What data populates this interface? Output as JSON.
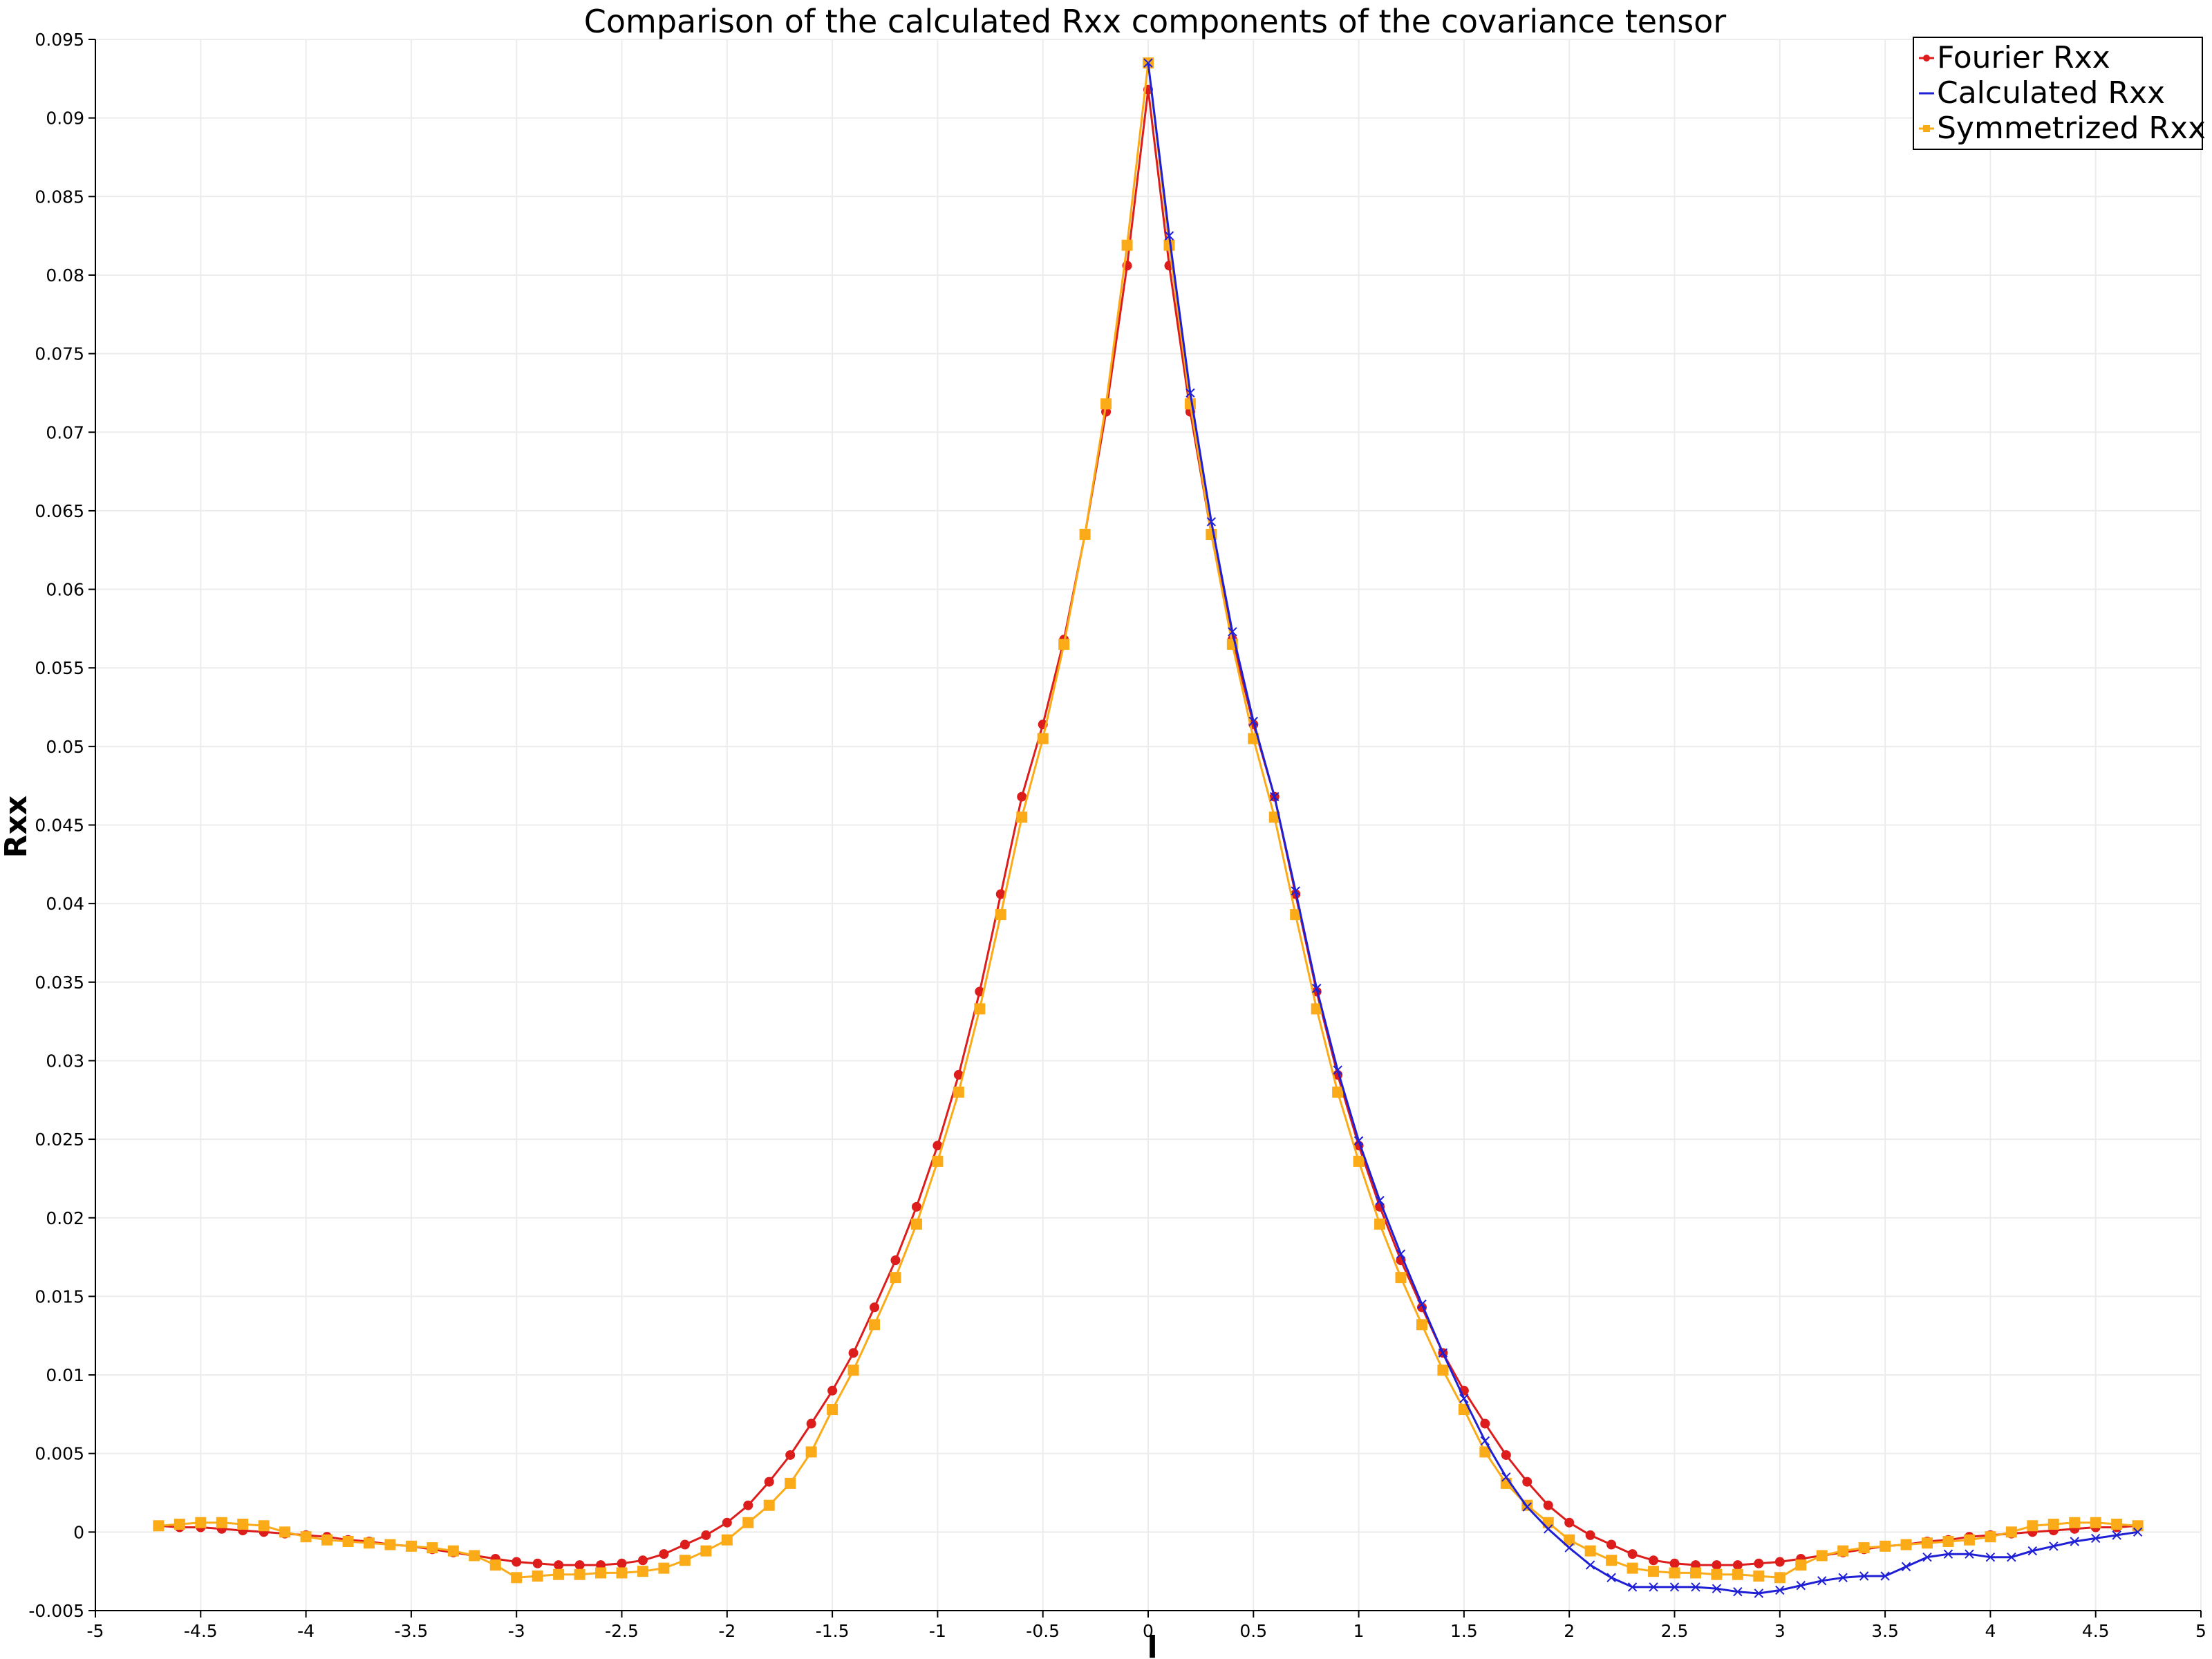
{
  "chart_data": {
    "type": "line",
    "title": "Comparison of the calculated Rxx components of the covariance tensor",
    "xlabel": "l",
    "ylabel": "Rxx",
    "xlim": [
      -5,
      5
    ],
    "ylim": [
      -0.005,
      0.095
    ],
    "xticks": [
      "-5",
      "-4.5",
      "-4",
      "-3.5",
      "-3",
      "-2.5",
      "-2",
      "-1.5",
      "-1",
      "-0.5",
      "0",
      "0.5",
      "1",
      "1.5",
      "2",
      "2.5",
      "3",
      "3.5",
      "4",
      "4.5",
      "5"
    ],
    "yticks": [
      "-0.005",
      "0",
      "0.005",
      "0.01",
      "0.015",
      "0.02",
      "0.025",
      "0.03",
      "0.035",
      "0.04",
      "0.045",
      "0.05",
      "0.055",
      "0.06",
      "0.065",
      "0.07",
      "0.075",
      "0.08",
      "0.085",
      "0.09",
      "0.095"
    ],
    "grid": true,
    "legend_position": "top-right",
    "series": [
      {
        "name": "Fourier Rxx",
        "color": "#dd1c1c",
        "marker": "circle",
        "x": [
          -4.7,
          -4.6,
          -4.5,
          -4.4,
          -4.3,
          -4.2,
          -4.1,
          -4.0,
          -3.9,
          -3.8,
          -3.7,
          -3.6,
          -3.5,
          -3.4,
          -3.3,
          -3.2,
          -3.1,
          -3.0,
          -2.9,
          -2.8,
          -2.7,
          -2.6,
          -2.5,
          -2.4,
          -2.3,
          -2.2,
          -2.1,
          -2.0,
          -1.9,
          -1.8,
          -1.7,
          -1.6,
          -1.5,
          -1.4,
          -1.3,
          -1.2,
          -1.1,
          -1.0,
          -0.9,
          -0.8,
          -0.7,
          -0.6,
          -0.5,
          -0.4,
          -0.3,
          -0.2,
          -0.1,
          0.0,
          0.1,
          0.2,
          0.3,
          0.4,
          0.5,
          0.6,
          0.7,
          0.8,
          0.9,
          1.0,
          1.1,
          1.2,
          1.3,
          1.4,
          1.5,
          1.6,
          1.7,
          1.8,
          1.9,
          2.0,
          2.1,
          2.2,
          2.3,
          2.4,
          2.5,
          2.6,
          2.7,
          2.8,
          2.9,
          3.0,
          3.1,
          3.2,
          3.3,
          3.4,
          3.5,
          3.6,
          3.7,
          3.8,
          3.9,
          4.0,
          4.1,
          4.2,
          4.3,
          4.4,
          4.5,
          4.6,
          4.7
        ],
        "values": [
          0.0004,
          0.0003,
          0.0003,
          0.0002,
          0.0001,
          0.0,
          -0.0001,
          -0.0002,
          -0.0003,
          -0.0005,
          -0.0006,
          -0.0008,
          -0.0009,
          -0.0011,
          -0.0013,
          -0.0015,
          -0.0017,
          -0.0019,
          -0.002,
          -0.0021,
          -0.0021,
          -0.0021,
          -0.002,
          -0.0018,
          -0.0014,
          -0.0008,
          -0.0002,
          0.0006,
          0.0017,
          0.0032,
          0.0049,
          0.0069,
          0.009,
          0.0114,
          0.0143,
          0.0173,
          0.0207,
          0.0246,
          0.0291,
          0.0344,
          0.0406,
          0.0468,
          0.0514,
          0.0568,
          0.0635,
          0.0713,
          0.0806,
          0.0918,
          0.0806,
          0.0713,
          0.0635,
          0.0568,
          0.0514,
          0.0468,
          0.0406,
          0.0344,
          0.0291,
          0.0246,
          0.0207,
          0.0173,
          0.0143,
          0.0114,
          0.009,
          0.0069,
          0.0049,
          0.0032,
          0.0017,
          0.0006,
          -0.0002,
          -0.0008,
          -0.0014,
          -0.0018,
          -0.002,
          -0.0021,
          -0.0021,
          -0.0021,
          -0.002,
          -0.0019,
          -0.0017,
          -0.0015,
          -0.0013,
          -0.0011,
          -0.0009,
          -0.0008,
          -0.0006,
          -0.0005,
          -0.0003,
          -0.0002,
          -0.0001,
          0.0,
          0.0001,
          0.0002,
          0.0003,
          0.0003,
          0.0004
        ]
      },
      {
        "name": "Calculated Rxx",
        "color": "#1f1fd6",
        "marker": "x",
        "x": [
          0.0,
          0.1,
          0.2,
          0.3,
          0.4,
          0.5,
          0.6,
          0.7,
          0.8,
          0.9,
          1.0,
          1.1,
          1.2,
          1.3,
          1.4,
          1.5,
          1.6,
          1.7,
          1.8,
          1.9,
          2.0,
          2.1,
          2.2,
          2.3,
          2.4,
          2.5,
          2.6,
          2.7,
          2.8,
          2.9,
          3.0,
          3.1,
          3.2,
          3.3,
          3.4,
          3.5,
          3.6,
          3.7,
          3.8,
          3.9,
          4.0,
          4.1,
          4.2,
          4.3,
          4.4,
          4.5,
          4.6,
          4.7
        ],
        "values": [
          0.0935,
          0.0825,
          0.0725,
          0.0643,
          0.0573,
          0.0516,
          0.0468,
          0.0408,
          0.0346,
          0.0294,
          0.0249,
          0.0211,
          0.0177,
          0.0145,
          0.0114,
          0.0085,
          0.0058,
          0.0035,
          0.0016,
          0.0002,
          -0.001,
          -0.0021,
          -0.0029,
          -0.0035,
          -0.0035,
          -0.0035,
          -0.0035,
          -0.0036,
          -0.0038,
          -0.0039,
          -0.0037,
          -0.0034,
          -0.0031,
          -0.0029,
          -0.0028,
          -0.0028,
          -0.0022,
          -0.0016,
          -0.0014,
          -0.0014,
          -0.0016,
          -0.0016,
          -0.0012,
          -0.0009,
          -0.0006,
          -0.0004,
          -0.0002,
          0.0
        ]
      },
      {
        "name": "Symmetrized Rxx",
        "color": "#fbab17",
        "marker": "square",
        "x": [
          -4.7,
          -4.6,
          -4.5,
          -4.4,
          -4.3,
          -4.2,
          -4.1,
          -4.0,
          -3.9,
          -3.8,
          -3.7,
          -3.6,
          -3.5,
          -3.4,
          -3.3,
          -3.2,
          -3.1,
          -3.0,
          -2.9,
          -2.8,
          -2.7,
          -2.6,
          -2.5,
          -2.4,
          -2.3,
          -2.2,
          -2.1,
          -2.0,
          -1.9,
          -1.8,
          -1.7,
          -1.6,
          -1.5,
          -1.4,
          -1.3,
          -1.2,
          -1.1,
          -1.0,
          -0.9,
          -0.8,
          -0.7,
          -0.6,
          -0.5,
          -0.4,
          -0.3,
          -0.2,
          -0.1,
          0.0,
          0.1,
          0.2,
          0.3,
          0.4,
          0.5,
          0.6,
          0.7,
          0.8,
          0.9,
          1.0,
          1.1,
          1.2,
          1.3,
          1.4,
          1.5,
          1.6,
          1.7,
          1.8,
          1.9,
          2.0,
          2.1,
          2.2,
          2.3,
          2.4,
          2.5,
          2.6,
          2.7,
          2.8,
          2.9,
          3.0,
          3.1,
          3.2,
          3.3,
          3.4,
          3.5,
          3.6,
          3.7,
          3.8,
          3.9,
          4.0,
          4.1,
          4.2,
          4.3,
          4.4,
          4.5,
          4.6,
          4.7
        ],
        "values": [
          0.0004,
          0.0005,
          0.0006,
          0.0006,
          0.0005,
          0.0004,
          0.0,
          -0.0003,
          -0.0005,
          -0.0006,
          -0.0007,
          -0.0008,
          -0.0009,
          -0.001,
          -0.0012,
          -0.0015,
          -0.0021,
          -0.0029,
          -0.0028,
          -0.0027,
          -0.0027,
          -0.0026,
          -0.0026,
          -0.0025,
          -0.0023,
          -0.0018,
          -0.0012,
          -0.0005,
          0.0006,
          0.0017,
          0.0031,
          0.0051,
          0.0078,
          0.0103,
          0.0132,
          0.0162,
          0.0196,
          0.0236,
          0.028,
          0.0333,
          0.0393,
          0.0455,
          0.0505,
          0.0565,
          0.0635,
          0.0718,
          0.0819,
          0.0935,
          0.0819,
          0.0718,
          0.0635,
          0.0565,
          0.0505,
          0.0455,
          0.0393,
          0.0333,
          0.028,
          0.0236,
          0.0196,
          0.0162,
          0.0132,
          0.0103,
          0.0078,
          0.0051,
          0.0031,
          0.0017,
          0.0006,
          -0.0005,
          -0.0012,
          -0.0018,
          -0.0023,
          -0.0025,
          -0.0026,
          -0.0026,
          -0.0027,
          -0.0027,
          -0.0028,
          -0.0029,
          -0.0021,
          -0.0015,
          -0.0012,
          -0.001,
          -0.0009,
          -0.0008,
          -0.0007,
          -0.0006,
          -0.0005,
          -0.0003,
          0.0,
          0.0004,
          0.0005,
          0.0006,
          0.0006,
          0.0005,
          0.0004
        ]
      }
    ]
  }
}
